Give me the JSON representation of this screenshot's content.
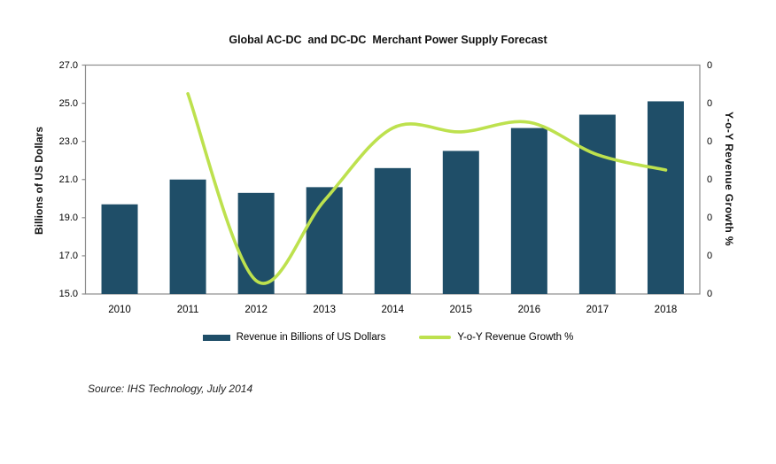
{
  "title": "Global AC-DC  and DC-DC  Merchant Power Supply Forecast",
  "source_note": "Source: IHS Technology, July 2014",
  "colors": {
    "bar": "#1F4E68",
    "line": "#BDE14E",
    "axis_border": "#8C8C8C",
    "text": "#000000"
  },
  "legend": [
    {
      "label": "Revenue in Billions of US Dollars",
      "marker": "bar-swatch"
    },
    {
      "label": "Y-o-Y Revenue Growth %",
      "marker": "line-swatch"
    }
  ],
  "chart_data": {
    "type": "bar+line",
    "categories": [
      "2010",
      "2011",
      "2012",
      "2013",
      "2014",
      "2015",
      "2016",
      "2017",
      "2018"
    ],
    "series": [
      {
        "name": "Revenue in Billions of US Dollars",
        "type": "bar",
        "axis": "left",
        "values": [
          19.7,
          21.0,
          20.3,
          20.6,
          21.6,
          22.5,
          23.7,
          24.4,
          25.1
        ]
      },
      {
        "name": "Y-o-Y Revenue Growth %",
        "type": "line",
        "axis": "right",
        "values": [
          null,
          6.5,
          -3.3,
          0.9,
          4.7,
          4.5,
          5.0,
          3.3,
          2.5
        ]
      }
    ],
    "left_axis": {
      "title": "Billions of US Dollars",
      "min": 15.0,
      "max": 27.0,
      "tick_labels": [
        "27.0",
        "25.0",
        "23.0",
        "21.0",
        "19.0",
        "17.0",
        "15.0"
      ]
    },
    "right_axis": {
      "title": "Y-o-Y Revenue Growth %",
      "min": -4,
      "max": 8,
      "tick_labels": [
        "0",
        "0",
        "0",
        "0",
        "0",
        "0",
        "0"
      ]
    },
    "grid": false,
    "legend_position": "bottom",
    "smooth_line": true
  }
}
